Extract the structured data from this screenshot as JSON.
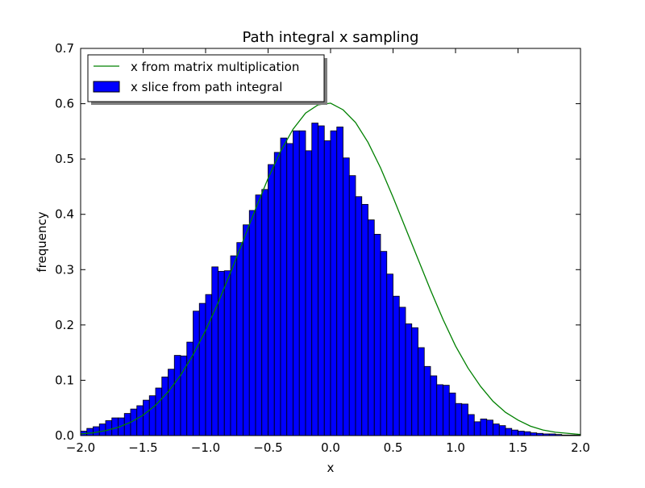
{
  "chart_data": {
    "type": "bar",
    "title": "Path integral x sampling",
    "xlabel": "x",
    "ylabel": "frequency",
    "xlim": [
      -2.0,
      2.0
    ],
    "ylim": [
      0.0,
      0.7
    ],
    "grid": false,
    "legend_position": "top-left",
    "x_ticks": [
      "−2.0",
      "−1.5",
      "−1.0",
      "−0.5",
      "0.0",
      "0.5",
      "1.0",
      "1.5",
      "2.0"
    ],
    "y_ticks": [
      "0.0",
      "0.1",
      "0.2",
      "0.3",
      "0.4",
      "0.5",
      "0.6",
      "0.7"
    ],
    "histogram": {
      "name": "x slice from path integral",
      "color": "#0000ff",
      "bin_start": -2.0,
      "bin_width": 0.05,
      "values": [
        0.008,
        0.013,
        0.016,
        0.021,
        0.027,
        0.032,
        0.032,
        0.04,
        0.048,
        0.054,
        0.064,
        0.072,
        0.086,
        0.106,
        0.12,
        0.145,
        0.144,
        0.169,
        0.225,
        0.239,
        0.255,
        0.305,
        0.297,
        0.298,
        0.325,
        0.349,
        0.381,
        0.407,
        0.435,
        0.445,
        0.49,
        0.512,
        0.538,
        0.528,
        0.551,
        0.551,
        0.515,
        0.565,
        0.56,
        0.533,
        0.551,
        0.558,
        0.502,
        0.47,
        0.432,
        0.418,
        0.39,
        0.364,
        0.333,
        0.292,
        0.252,
        0.232,
        0.202,
        0.195,
        0.159,
        0.125,
        0.108,
        0.092,
        0.091,
        0.077,
        0.058,
        0.057,
        0.038,
        0.025,
        0.03,
        0.028,
        0.021,
        0.018,
        0.013,
        0.01,
        0.008,
        0.007,
        0.005,
        0.004,
        0.003,
        0.003,
        0.002,
        0.001,
        0.001,
        0.001
      ]
    },
    "series": [
      {
        "name": "x from matrix multiplication",
        "color": "#008000",
        "x": [
          -2.0,
          -1.9,
          -1.8,
          -1.7,
          -1.6,
          -1.5,
          -1.4,
          -1.3,
          -1.2,
          -1.1,
          -1.0,
          -0.9,
          -0.8,
          -0.7,
          -0.6,
          -0.5,
          -0.4,
          -0.3,
          -0.2,
          -0.1,
          0.0,
          0.1,
          0.2,
          0.3,
          0.4,
          0.5,
          0.6,
          0.7,
          0.8,
          0.9,
          1.0,
          1.1,
          1.2,
          1.3,
          1.4,
          1.5,
          1.6,
          1.7,
          1.8,
          1.9,
          2.0
        ],
        "y": [
          0.003,
          0.005,
          0.009,
          0.015,
          0.024,
          0.037,
          0.055,
          0.079,
          0.109,
          0.146,
          0.19,
          0.24,
          0.295,
          0.352,
          0.41,
          0.465,
          0.514,
          0.554,
          0.583,
          0.598,
          0.601,
          0.589,
          0.566,
          0.53,
          0.484,
          0.431,
          0.375,
          0.319,
          0.263,
          0.21,
          0.162,
          0.122,
          0.089,
          0.062,
          0.042,
          0.028,
          0.017,
          0.01,
          0.006,
          0.004,
          0.002
        ]
      }
    ]
  }
}
